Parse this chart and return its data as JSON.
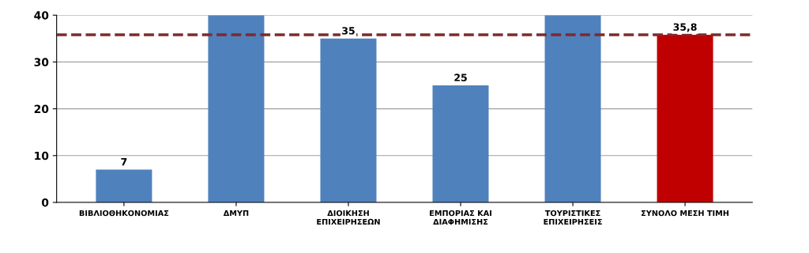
{
  "chart_data": {
    "type": "bar",
    "categories": [
      "ΒΙΒΛΙΟΘΗΚΟΝΟΜΙΑΣ",
      "ΔΜΥΠ",
      "ΔΙΟΙΚΗΣΗ\nΕΠΙΧΕΙΡΗΣΕΩΝ",
      "ΕΜΠΟΡΙΑΣ ΚΑΙ\nΔΙΑΦΗΜΙΣΗΣ",
      "ΤΟΥΡΙΣΤΙΚΕΣ\nΕΠΙΧΕΙΡΗΣΕΙΣ",
      "ΣΥΝΟΛΟ ΜΕΣΗ ΤΙΜΗ"
    ],
    "values": [
      7,
      40,
      35,
      25,
      40,
      35.8
    ],
    "colors": [
      "#4f81bd",
      "#4f81bd",
      "#4f81bd",
      "#4f81bd",
      "#4f81bd",
      "#c00000"
    ],
    "value_labels": [
      "7",
      null,
      "35",
      "25",
      null,
      "35,8"
    ],
    "ylim": [
      0,
      40
    ],
    "yticks": [
      0,
      10,
      20,
      30,
      40
    ],
    "grid": "y",
    "ref_lines": [
      {
        "axis": "y",
        "value": 35.8,
        "color": "#7f2a2a",
        "line_style": "dashed"
      }
    ]
  }
}
